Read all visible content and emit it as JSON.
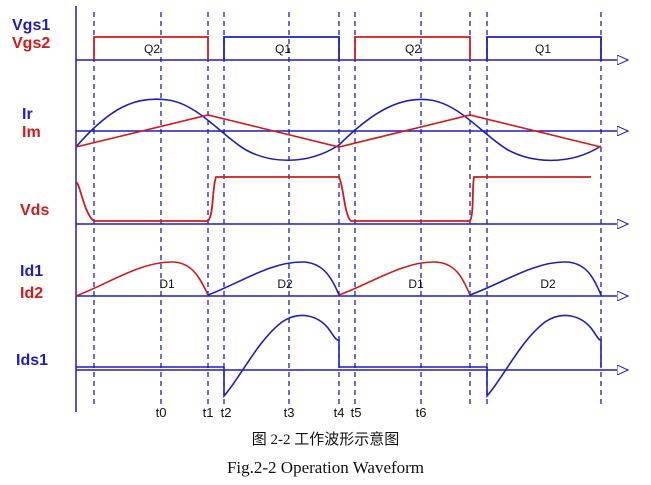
{
  "colors": {
    "blue": "#1f1fb8",
    "red": "#d11a1a",
    "dash": "#1f1fb8"
  },
  "labels": {
    "vgs1": "Vgs1",
    "vgs2": "Vgs2",
    "ir": "Ir",
    "im": "Im",
    "vds": "Vds",
    "id1": "Id1",
    "id2": "Id2",
    "ids1": "Ids1"
  },
  "gate_pulses": [
    "Q2",
    "Q1",
    "Q2",
    "Q1"
  ],
  "diode_intervals": [
    "D1",
    "D2",
    "D1",
    "D2"
  ],
  "time_markers": [
    "t0",
    "t1",
    "t2",
    "t3",
    "t4",
    "t5",
    "t6"
  ],
  "caption": {
    "chinese": "图 2-2  工作波形示意图",
    "english": "Fig.2-2 Operation Waveform"
  }
}
